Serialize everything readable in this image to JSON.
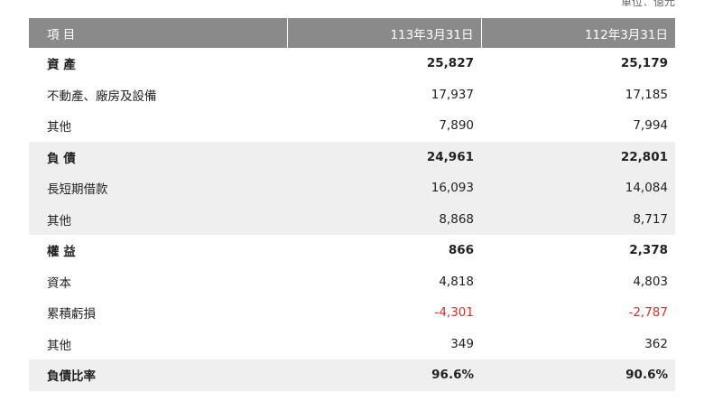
{
  "unit": "單位：億元",
  "table": {
    "header": [
      "項 目",
      "113年3月31日",
      "112年3月31日"
    ],
    "rows": [
      [
        "資 產",
        "25,827",
        "25,179"
      ],
      [
        "不動產、廠房及設備",
        "17,937",
        "17,185"
      ],
      [
        "其他",
        "7,890",
        "7,994"
      ],
      [
        "負 債",
        "24,961",
        "22,801"
      ],
      [
        "長短期借款",
        "16,093",
        "14,084"
      ],
      [
        "其他",
        "8,868",
        "8,717"
      ],
      [
        "權 益",
        "866",
        "2,378"
      ],
      [
        "資本",
        "4,818",
        "4,803"
      ],
      [
        "累積虧損",
        "-4,301",
        "-2,787"
      ],
      [
        "其他",
        "349",
        "362"
      ],
      [
        "負債比率",
        "96.6%",
        "90.6%"
      ]
    ]
  }
}
